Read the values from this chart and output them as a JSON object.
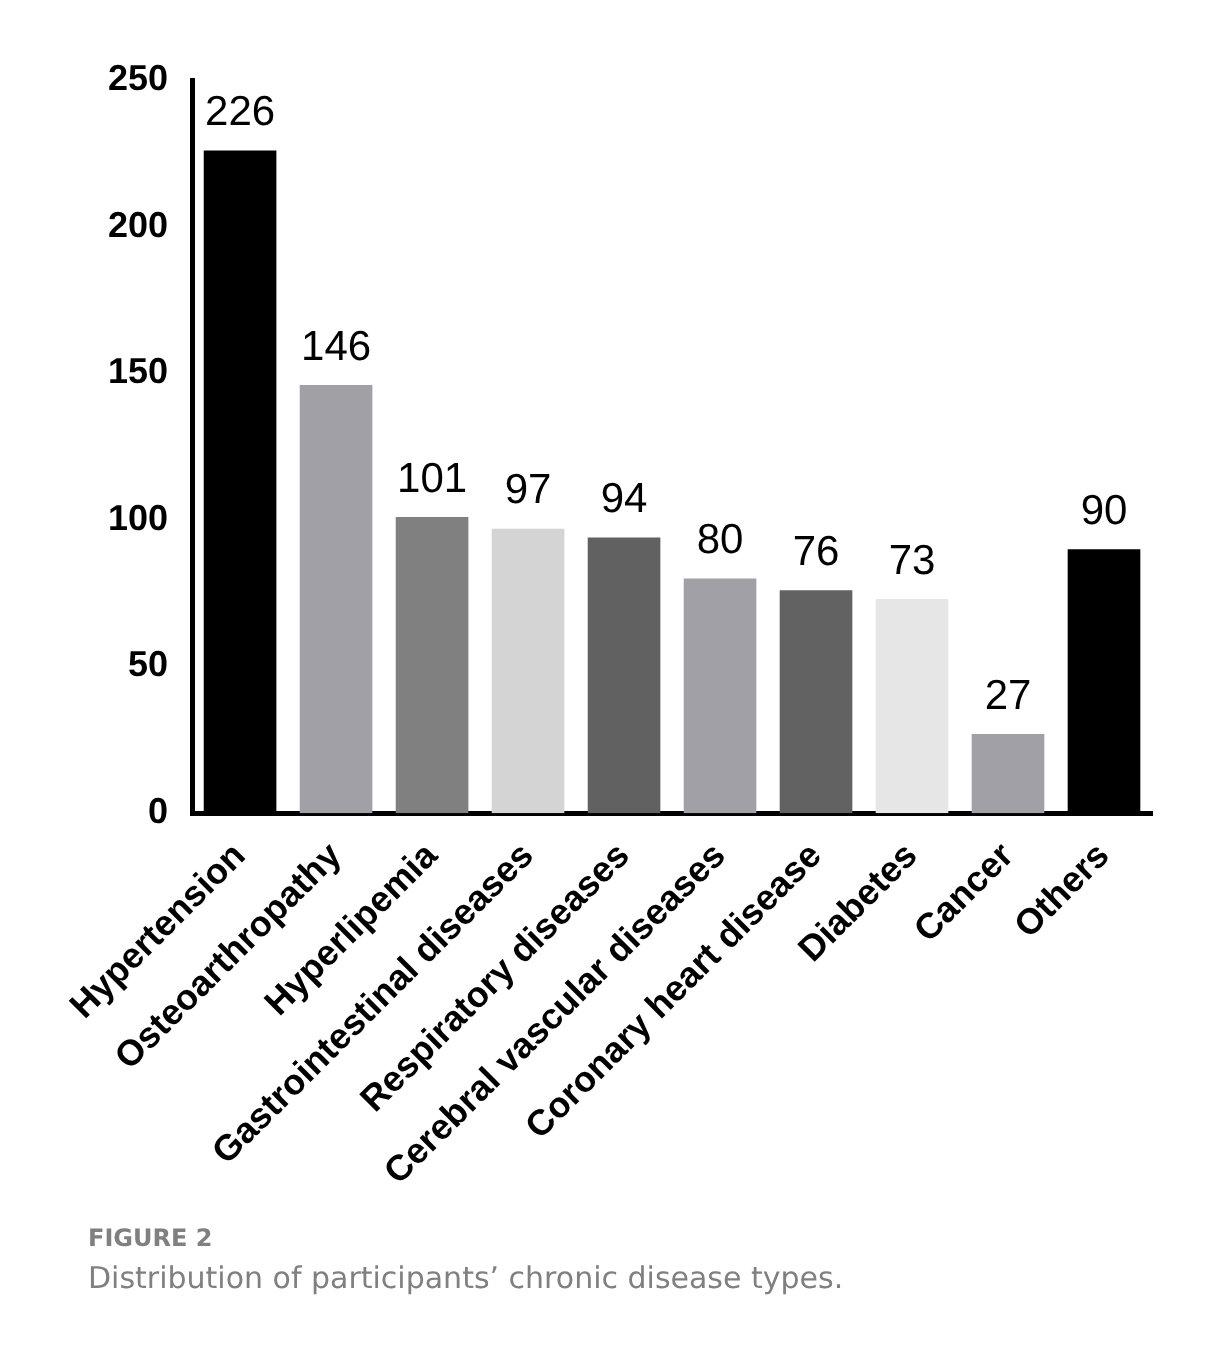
{
  "chart_data": {
    "type": "bar",
    "categories": [
      "Hypertension",
      "Osteoarthropathy",
      "Hyperlipemia",
      "Gastrointestinal diseases",
      "Respiratory diseases",
      "Cerebral vascular diseases",
      "Coronary heart disease",
      "Diabetes",
      "Cancer",
      "Others"
    ],
    "values": [
      226,
      146,
      101,
      97,
      94,
      80,
      76,
      73,
      27,
      90
    ],
    "colors": [
      "#000000",
      "#a1a0a6",
      "#808080",
      "#d4d4d4",
      "#616161",
      "#a1a0a6",
      "#626262",
      "#e6e6e6",
      "#a1a0a6",
      "#000000"
    ],
    "ylim": [
      0,
      250
    ],
    "yticks": [
      0,
      50,
      100,
      150,
      200,
      250
    ],
    "data_labels": true,
    "grid": false,
    "legend": false,
    "annotations": [
      "FIGURE 2",
      "Distribution of participants’ chronic disease types."
    ]
  }
}
